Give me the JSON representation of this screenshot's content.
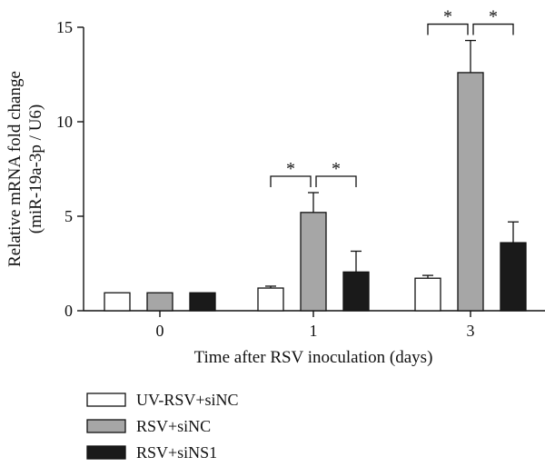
{
  "chart_data": {
    "type": "bar",
    "categories": [
      "0",
      "1",
      "3"
    ],
    "series": [
      {
        "name": "UV-RSV+siNC",
        "values": [
          0.95,
          1.2,
          1.72
        ],
        "errors": [
          0,
          0.1,
          0.15
        ],
        "color": "#ffffff"
      },
      {
        "name": "RSV+siNC",
        "values": [
          0.95,
          5.2,
          12.6
        ],
        "errors": [
          0,
          1.05,
          1.7
        ],
        "color": "#a6a6a6"
      },
      {
        "name": "RSV+siNS1",
        "values": [
          0.95,
          2.05,
          3.6
        ],
        "errors": [
          0,
          1.1,
          1.1
        ],
        "color": "#1a1a1a"
      }
    ],
    "xlabel": "Time after RSV inoculation (days)",
    "ylabel": "Relative mRNA fold change",
    "ylabel_line2": "(miR-19a-3p / U6)",
    "ylim": [
      0,
      15
    ],
    "yticks": [
      0,
      5,
      10,
      15
    ],
    "ytick_labels": [
      "0",
      "5",
      "10",
      "15"
    ],
    "significance": [
      {
        "category": "1",
        "pairs": [
          [
            0,
            1
          ],
          [
            1,
            2
          ]
        ],
        "label": "*"
      },
      {
        "category": "3",
        "pairs": [
          [
            0,
            1
          ],
          [
            1,
            2
          ]
        ],
        "label": "*"
      }
    ],
    "legend_position": "bottom-left",
    "grid": false
  }
}
